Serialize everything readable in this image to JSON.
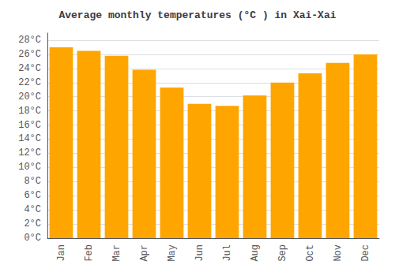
{
  "chart_data": {
    "type": "bar",
    "title": "Average monthly temperatures (°C ) in Xai-Xai",
    "categories": [
      "Jan",
      "Feb",
      "Mar",
      "Apr",
      "May",
      "Jun",
      "Jul",
      "Aug",
      "Sep",
      "Oct",
      "Nov",
      "Dec"
    ],
    "values": [
      27,
      26.5,
      25.8,
      23.8,
      21.3,
      19.0,
      18.7,
      20.2,
      22.0,
      23.3,
      24.8,
      26.0
    ],
    "color": "#FFA500",
    "ylim": [
      0,
      29
    ],
    "yticks": [
      {
        "value": 0,
        "label": "0°C"
      },
      {
        "value": 2,
        "label": "2°C"
      },
      {
        "value": 4,
        "label": "4°C"
      },
      {
        "value": 6,
        "label": "6°C"
      },
      {
        "value": 8,
        "label": "8°C"
      },
      {
        "value": 10,
        "label": "10°C"
      },
      {
        "value": 12,
        "label": "12°C"
      },
      {
        "value": 14,
        "label": "14°C"
      },
      {
        "value": 16,
        "label": "16°C"
      },
      {
        "value": 18,
        "label": "18°C"
      },
      {
        "value": 20,
        "label": "20°C"
      },
      {
        "value": 22,
        "label": "22°C"
      },
      {
        "value": 24,
        "label": "24°C"
      },
      {
        "value": 26,
        "label": "26°C"
      },
      {
        "value": 28,
        "label": "28°C"
      }
    ],
    "grid": true
  }
}
